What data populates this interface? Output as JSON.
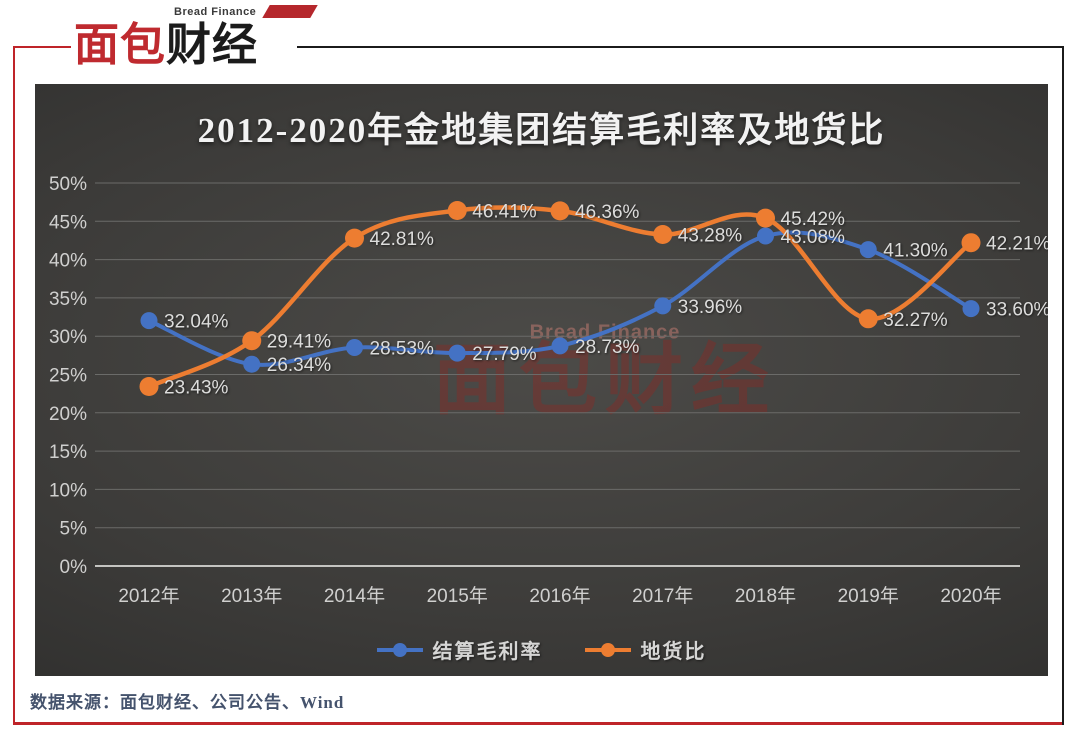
{
  "logo": {
    "brand_en": "Bread Finance",
    "brand_cn_red": "面包",
    "brand_cn_black": "财经"
  },
  "watermark": {
    "en": "Bread Finance",
    "cn": "面包财经"
  },
  "source": {
    "text": "数据来源：面包财经、公司公告、Wind"
  },
  "colors": {
    "blue": "#4472C4",
    "orange": "#ED7D31",
    "frame_red": "#BF2429",
    "frame_black": "#1B1B1B"
  },
  "chart_data": {
    "type": "line",
    "title": "2012-2020年金地集团结算毛利率及地货比",
    "categories": [
      "2012年",
      "2013年",
      "2014年",
      "2015年",
      "2016年",
      "2017年",
      "2018年",
      "2019年",
      "2020年"
    ],
    "series": [
      {
        "name": "结算毛利率",
        "color": "#4472C4",
        "values": [
          32.04,
          26.34,
          28.53,
          27.79,
          28.73,
          33.96,
          43.08,
          41.3,
          33.6
        ],
        "labels": [
          "32.04%",
          "26.34%",
          "28.53%",
          "27.79%",
          "28.73%",
          "33.96%",
          "43.08%",
          "41.30%",
          "33.60%"
        ]
      },
      {
        "name": "地货比",
        "color": "#ED7D31",
        "values": [
          23.43,
          29.41,
          42.81,
          46.41,
          46.36,
          43.28,
          45.42,
          32.27,
          42.21
        ],
        "labels": [
          "23.43%",
          "29.41%",
          "42.81%",
          "46.41%",
          "46.36%",
          "43.28%",
          "45.42%",
          "32.27%",
          "42.21%"
        ]
      }
    ],
    "ylim": [
      0,
      50
    ],
    "ytick_step": 5,
    "ytick_labels": [
      "0%",
      "5%",
      "10%",
      "15%",
      "20%",
      "25%",
      "30%",
      "35%",
      "40%",
      "45%",
      "50%"
    ],
    "grid": true,
    "legend_position": "bottom",
    "smooth_lines": true
  }
}
